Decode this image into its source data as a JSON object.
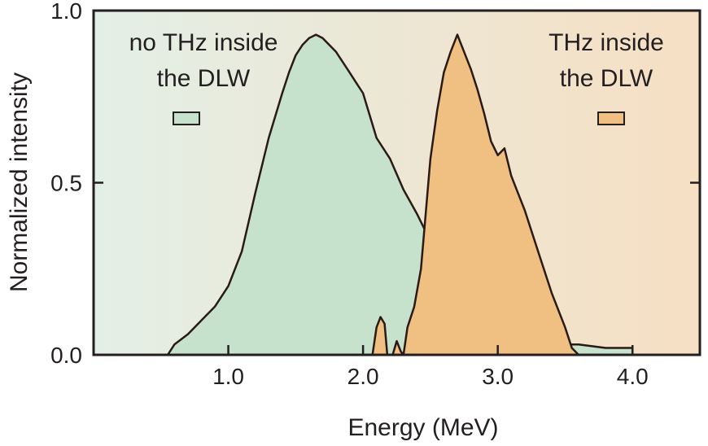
{
  "chart_data": {
    "type": "area",
    "title": "",
    "xlabel": "Energy (MeV)",
    "ylabel": "Normalized intensity",
    "xlim": [
      0.0,
      4.5
    ],
    "ylim": [
      0.0,
      1.0
    ],
    "x_ticks": [
      1.0,
      2.0,
      3.0,
      4.0
    ],
    "x_tick_labels": [
      "1.0",
      "2.0",
      "3.0",
      "4.0"
    ],
    "y_ticks": [
      0.0,
      0.5,
      1.0
    ],
    "y_tick_labels": [
      "0.0",
      "0.5",
      "1.0"
    ],
    "grid": false,
    "background_gradient": [
      "#e3efe6",
      "#f6dfc3"
    ],
    "series": [
      {
        "name": "no THz inside the DLW",
        "legend_lines": [
          "no THz inside",
          "the DLW"
        ],
        "fill": "#c6e2cc",
        "stroke": "#2a1a16",
        "x": [
          0.55,
          0.6,
          0.7,
          0.8,
          0.9,
          1.0,
          1.1,
          1.2,
          1.3,
          1.4,
          1.45,
          1.5,
          1.55,
          1.6,
          1.65,
          1.7,
          1.75,
          1.8,
          1.85,
          1.9,
          1.95,
          2.0,
          2.1,
          2.2,
          2.3,
          2.4,
          2.45,
          2.5,
          2.6,
          2.7,
          2.8,
          2.9,
          3.0,
          3.1,
          3.2,
          3.3,
          3.4,
          3.5,
          3.6,
          3.7,
          3.8,
          3.9,
          4.0
        ],
        "values": [
          0.0,
          0.03,
          0.06,
          0.1,
          0.14,
          0.2,
          0.3,
          0.47,
          0.63,
          0.76,
          0.82,
          0.87,
          0.9,
          0.92,
          0.93,
          0.92,
          0.9,
          0.88,
          0.85,
          0.82,
          0.79,
          0.76,
          0.63,
          0.57,
          0.48,
          0.41,
          0.37,
          0.33,
          0.24,
          0.17,
          0.12,
          0.09,
          0.07,
          0.06,
          0.05,
          0.04,
          0.04,
          0.03,
          0.03,
          0.025,
          0.02,
          0.02,
          0.02
        ]
      },
      {
        "name": "THz inside the DLW",
        "legend_lines": [
          "THz inside",
          "the DLW"
        ],
        "fill": "#f0c082",
        "stroke": "#2a1a16",
        "x": [
          2.07,
          2.1,
          2.13,
          2.16,
          2.18,
          2.22,
          2.25,
          2.28,
          2.3,
          2.33,
          2.38,
          2.43,
          2.5,
          2.55,
          2.6,
          2.65,
          2.7,
          2.72,
          2.75,
          2.8,
          2.85,
          2.9,
          2.95,
          3.0,
          3.05,
          3.1,
          3.15,
          3.2,
          3.3,
          3.4,
          3.5,
          3.55,
          3.6
        ],
        "values": [
          0.0,
          0.08,
          0.11,
          0.09,
          0.0,
          0.0,
          0.04,
          0.01,
          0.0,
          0.08,
          0.14,
          0.25,
          0.57,
          0.71,
          0.82,
          0.88,
          0.93,
          0.91,
          0.88,
          0.83,
          0.77,
          0.7,
          0.62,
          0.58,
          0.6,
          0.52,
          0.47,
          0.42,
          0.3,
          0.18,
          0.08,
          0.02,
          0.0
        ]
      }
    ]
  }
}
